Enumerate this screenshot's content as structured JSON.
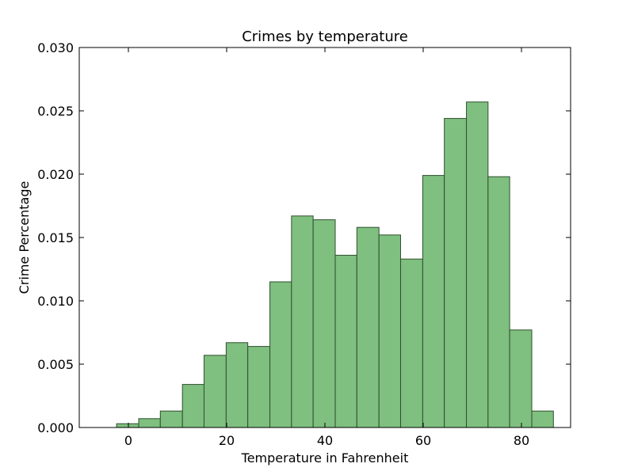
{
  "chart_data": {
    "type": "bar",
    "title": "Crimes by temperature",
    "xlabel": "Temperature in Fahrenheit",
    "ylabel": "Crime Percentage",
    "xlim": [
      -10,
      90
    ],
    "ylim": [
      0,
      0.03
    ],
    "xticks": [
      0,
      20,
      40,
      60,
      80
    ],
    "xtick_labels": [
      "0",
      "20",
      "40",
      "60",
      "80"
    ],
    "yticks": [
      0,
      0.005,
      0.01,
      0.015,
      0.02,
      0.025,
      0.03
    ],
    "ytick_labels": [
      "0.000",
      "0.005",
      "0.010",
      "0.015",
      "0.020",
      "0.025",
      "0.030"
    ],
    "grid": false,
    "bar_color": "#7fbf7f",
    "edge_color": "#2f4f2f",
    "bins": [
      {
        "x0": -2.4,
        "x1": 2.1,
        "value": 0.0003
      },
      {
        "x0": 2.1,
        "x1": 6.5,
        "value": 0.0007
      },
      {
        "x0": 6.5,
        "x1": 11.0,
        "value": 0.0013
      },
      {
        "x0": 11.0,
        "x1": 15.4,
        "value": 0.0034
      },
      {
        "x0": 15.4,
        "x1": 19.9,
        "value": 0.0057
      },
      {
        "x0": 19.9,
        "x1": 24.3,
        "value": 0.0067
      },
      {
        "x0": 24.3,
        "x1": 28.8,
        "value": 0.0064
      },
      {
        "x0": 28.8,
        "x1": 33.2,
        "value": 0.0115
      },
      {
        "x0": 33.2,
        "x1": 37.6,
        "value": 0.0167
      },
      {
        "x0": 37.6,
        "x1": 42.1,
        "value": 0.0164
      },
      {
        "x0": 42.1,
        "x1": 46.5,
        "value": 0.0136
      },
      {
        "x0": 46.5,
        "x1": 51.0,
        "value": 0.0158
      },
      {
        "x0": 51.0,
        "x1": 55.4,
        "value": 0.0152
      },
      {
        "x0": 55.4,
        "x1": 59.9,
        "value": 0.0133
      },
      {
        "x0": 59.9,
        "x1": 64.3,
        "value": 0.0199
      },
      {
        "x0": 64.3,
        "x1": 68.8,
        "value": 0.0244
      },
      {
        "x0": 68.8,
        "x1": 73.2,
        "value": 0.0257
      },
      {
        "x0": 73.2,
        "x1": 77.6,
        "value": 0.0198
      },
      {
        "x0": 77.6,
        "x1": 82.1,
        "value": 0.0077
      },
      {
        "x0": 82.1,
        "x1": 86.5,
        "value": 0.0013
      }
    ]
  }
}
